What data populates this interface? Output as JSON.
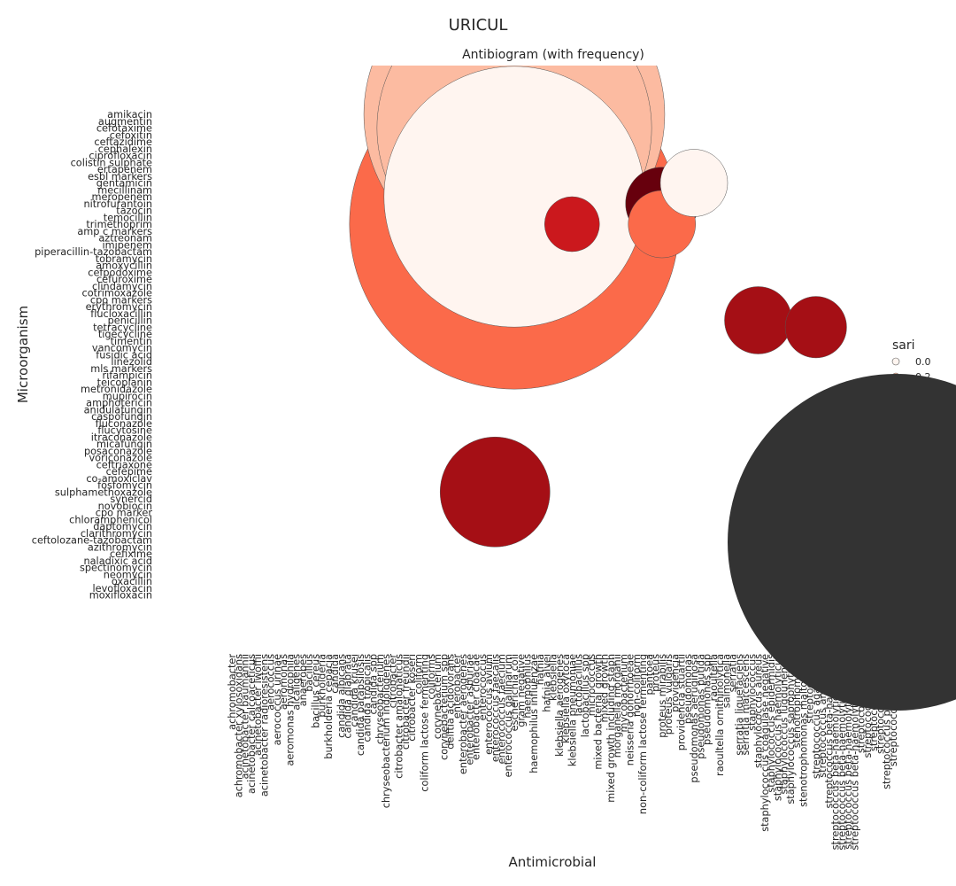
{
  "chart_data": {
    "type": "scatter",
    "suptitle": "URICUL",
    "title": "Antibiogram (with frequency)",
    "xlabel": "Antimicrobial",
    "ylabel": "Microorganism",
    "grid": false,
    "legend": {
      "title": "sari",
      "placement": "right",
      "hue_entries": [
        "0.0",
        "0.2"
      ],
      "size_entries": [
        "75000"
      ],
      "size_entry_value": 75000
    },
    "colormap": [
      "#fff5f0",
      "#fcbba1",
      "#fc9272",
      "#fb6a4a",
      "#ef3b2c",
      "#cb181d",
      "#a50f15",
      "#67000d"
    ],
    "y_categories": [
      "amikacin",
      "augmentin",
      "cefotaxime",
      "cefoxitin",
      "ceftazidime",
      "cephalexin",
      "ciprofloxacin",
      "colistin sulphate",
      "ertapenem",
      "esbl markers",
      "gentamicin",
      "mecillinam",
      "meropenem",
      "nitrofurantoin",
      "tazocin",
      "temocillin",
      "trimethoprim",
      "amp c markers",
      "aztreonam",
      "imipenem",
      "piperacillin-tazobactam",
      "tobramycin",
      "amoxycillin",
      "cefpodoxime",
      "cefuroxime",
      "clindamycin",
      "cotrimoxazole",
      "cpo markers",
      "erythromycin",
      "flucloxacillin",
      "penicillin",
      "tetracycline",
      "tigecycline",
      "timentin",
      "vancomycin",
      "fusidic acid",
      "linezolid",
      "mls markers",
      "rifampicin",
      "teicoplanin",
      "metronidazole",
      "mupirocin",
      "amphotericin",
      "anidulafungin",
      "caspofungin",
      "fluconazole",
      "flucytosine",
      "itraconazole",
      "micafungin",
      "posaconazole",
      "voriconazole",
      "ceftriaxone",
      "cefepime",
      "co-amoxiclav",
      "fosfomycin",
      "sulphamethoxazole",
      "synercid",
      "novobiocin",
      "cpo marker",
      "chloramphenicol",
      "daptomycin",
      "clarithromycin",
      "ceftolozane-tazobactam",
      "azithromycin",
      "cefixime",
      "naladixic acid",
      "spectinomycin",
      "neomycin",
      "oxacillin",
      "levofloxacin",
      "moxifloxacin"
    ],
    "x_categories": [
      "achromobacter",
      "achromobacter xylosoxidans",
      "acinetobacter baumannii",
      "acinetobacter calcoaceticus",
      "acinetobacter lwoffii",
      "acinetobacter radioresistens",
      "aerococcus",
      "aerococcus urinae",
      "aeromonas",
      "aeromonas hydrophila",
      "alcaligenes",
      "anaerobes",
      "bacillus",
      "bacillus cereus",
      "burkholderia",
      "burkholderia cepacia",
      "candida",
      "candida albicans",
      "candida glabrata",
      "candida krusei",
      "candida parapsilosis",
      "candida tropicalis",
      "candida spp",
      "chryseobacterium",
      "chryseobacterium indologenes",
      "citrobacter",
      "citrobacter amalonaticus",
      "citrobacter freundii",
      "citrobacter koseri",
      "coliform",
      "coliform lactose fermenting",
      "coliforms",
      "corynebacterium",
      "corynebacterium spp",
      "delftia acidovorans",
      "enterobacter",
      "enterobacter aerogenes",
      "enterobacter asburiae",
      "enterobacter cloacae",
      "enterococcus",
      "enterococcus avium",
      "enterococcus faecalis",
      "enterococcus faecium",
      "enterococcus gallinarum",
      "escherichia coli",
      "gram negative",
      "haemophilus",
      "haemophilus influenzae",
      "hafnia",
      "hafnia alvei",
      "klebsiella",
      "klebsiella aerogenes",
      "klebsiella oxytoca",
      "klebsiella pneumoniae",
      "lactobacillus",
      "lactobacillus spp",
      "micrococcus",
      "mixed bacterial growth",
      "mixed growth",
      "mixed growth including staph",
      "morganella morganii",
      "mycobacterium",
      "neisseria gonorrhoeae",
      "non-coliform",
      "non-coliform lactose fermenting",
      "pantoea",
      "proteus",
      "proteus mirabilis",
      "proteus vulgaris",
      "providencia",
      "providencia stuartii",
      "pseudomonas",
      "pseudomonas aeruginosa",
      "pseudomonas putida",
      "pseudomonas spp",
      "raoultella",
      "raoultella ornithinolytica",
      "salmonella",
      "serratia",
      "serratia liquefaciens",
      "serratia marcescens",
      "staphylococcus",
      "staphylococcus aureus",
      "staphylococcus coagulase negative",
      "staphylococcus epidermidis",
      "staphylococcus haemolyticus",
      "staphylococcus lugdunensis",
      "staphylococcus saprophyticus",
      "stenotrophomonas",
      "stenotrophomonas maltophilia",
      "streptococcus",
      "streptococcus agalactiae",
      "streptococcus anginosus",
      "streptococcus beta-haemolytic",
      "streptococcus beta-haemolytic group a",
      "streptococcus beta-haemolytic group b",
      "streptococcus beta-haemolytic group c",
      "streptococcus beta-haemolytic group g",
      "streptococcus bovis",
      "streptococcus milleri",
      "streptococcus mitis",
      "streptococcus oralis",
      "streptococcus pneumoniae",
      "streptococcus viridans"
    ],
    "points": [
      {
        "x": "escherichia coli",
        "y": "trimethoprim",
        "size": 72000,
        "sari": 0.4
      },
      {
        "x": "escherichia coli",
        "y": "amikacin",
        "size": 60000,
        "sari": 0.1
      },
      {
        "x": "escherichia coli",
        "y": "cefotaxime",
        "size": 50000,
        "sari": 0.15
      },
      {
        "x": "escherichia coli",
        "y": "meropenem",
        "size": 45000,
        "sari": 0.05
      },
      {
        "x": "enterococcus faecalis",
        "y": "sulphamethoxazole",
        "size": 8000,
        "sari": 0.82
      },
      {
        "x": "staphylococcus aureus",
        "y": "penicillin",
        "size": 3000,
        "sari": 0.85
      },
      {
        "x": "klebsiella pneumoniae",
        "y": "trimethoprim",
        "size": 2000,
        "sari": 0.7
      },
      {
        "x": "proteus mirabilis",
        "y": "nitrofurantoin",
        "size": 3500,
        "sari": 0.95
      },
      {
        "x": "proteus mirabilis",
        "y": "trimethoprim",
        "size": 3000,
        "sari": 0.4
      },
      {
        "x": "pseudomonas aeruginosa",
        "y": "gentamicin",
        "size": 3000,
        "sari": 0.05
      },
      {
        "x": "streptococcus agalactiae",
        "y": "tetracycline",
        "size": 2500,
        "sari": 0.85
      }
    ]
  }
}
